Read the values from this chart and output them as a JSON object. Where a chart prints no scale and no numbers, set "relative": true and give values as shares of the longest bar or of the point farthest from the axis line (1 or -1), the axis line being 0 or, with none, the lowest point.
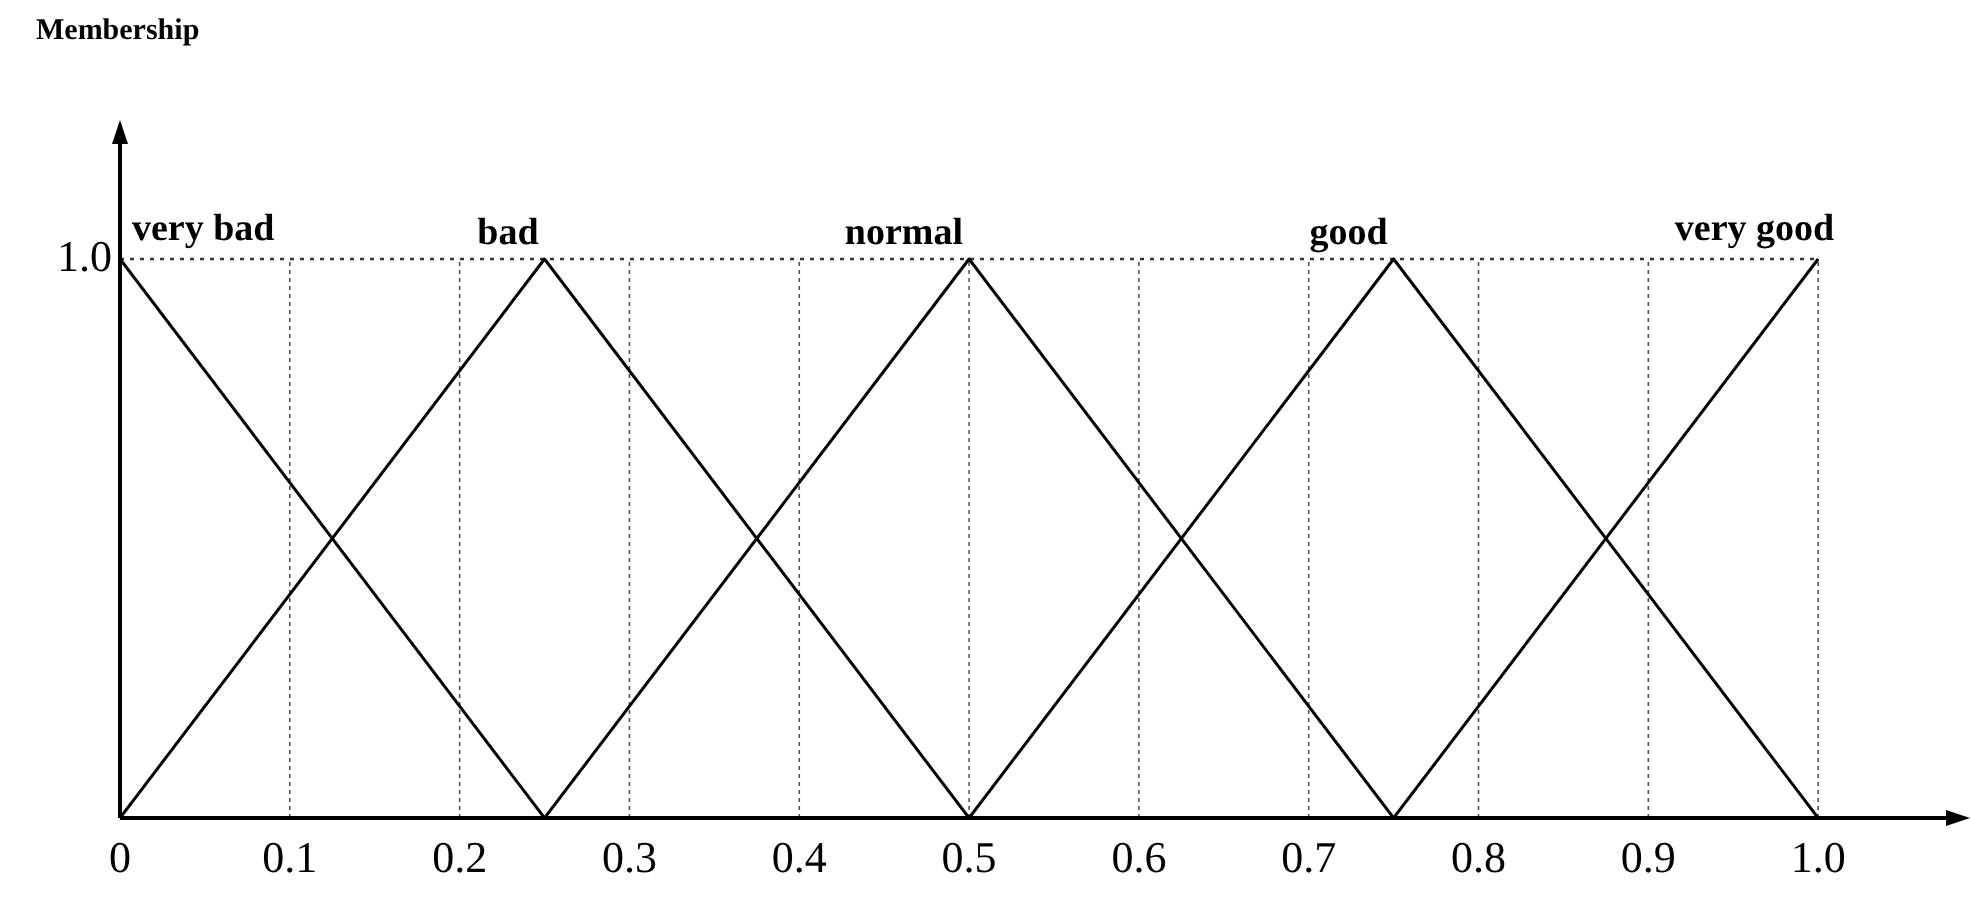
{
  "chart_data": {
    "type": "line",
    "annotations": [
      "Membership"
    ],
    "xlim": [
      0,
      1.08
    ],
    "xticks": [
      0,
      0.1,
      0.2,
      0.3,
      0.4,
      0.5,
      0.6,
      0.7,
      0.8,
      0.9,
      {
        "value": 1,
        "label": "1.0"
      }
    ],
    "relative": true,
    "ref_lines": [
      {
        "axis": "y",
        "value": 1,
        "label": "1.0",
        "line_style": "dotted",
        "color": "#333333"
      }
    ],
    "grid": "x",
    "legend": false,
    "marker": "none",
    "line_style": "solid",
    "series": [
      {
        "name": "very bad",
        "color": "#000000",
        "x": [
          0,
          0.25
        ],
        "values": [
          1,
          0
        ]
      },
      {
        "name": "bad",
        "color": "#000000",
        "x": [
          0,
          0.25,
          0.5
        ],
        "values": [
          0,
          1,
          0
        ]
      },
      {
        "name": "normal",
        "color": "#000000",
        "x": [
          0.25,
          0.5,
          0.75
        ],
        "values": [
          0,
          1,
          0
        ]
      },
      {
        "name": "good",
        "color": "#000000",
        "x": [
          0.5,
          0.75,
          1
        ],
        "values": [
          0,
          1,
          0
        ]
      },
      {
        "name": "very good",
        "color": "#000000",
        "x": [
          0.75,
          1
        ],
        "values": [
          0,
          1
        ]
      }
    ]
  }
}
